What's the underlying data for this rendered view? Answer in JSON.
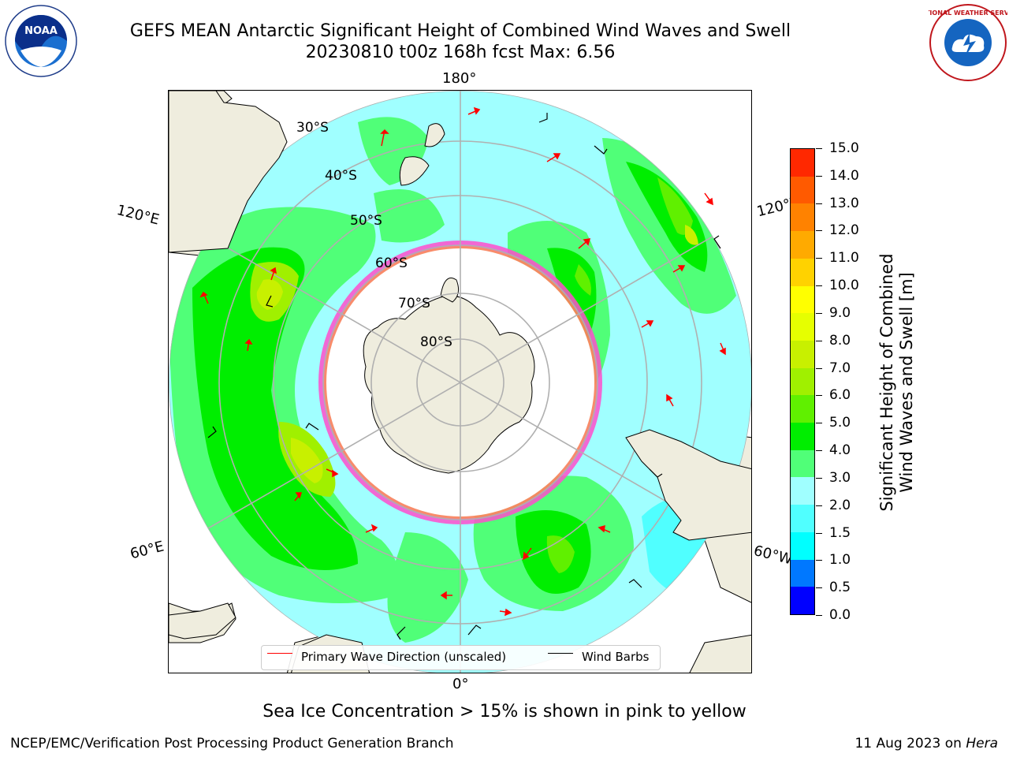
{
  "title": {
    "line1": "GEFS MEAN Antarctic Significant Height of Combined Wind Waves and Swell",
    "line2": "20230810 t00z 168h fcst   Max: 6.56"
  },
  "logos": {
    "left": {
      "icon": "noaa-logo",
      "text": "NOAA"
    },
    "right": {
      "icon": "nws-logo",
      "text": "NATIONAL WEATHER SERVICE"
    }
  },
  "map": {
    "projection": "south-polar-stereographic",
    "longitude_labels": {
      "top": "180°",
      "bottom": "0°",
      "upper_left": "120°E",
      "lower_left": "60°E",
      "upper_right": "120°W",
      "lower_right": "60°W"
    },
    "latitude_labels": [
      "30°S",
      "40°S",
      "50°S",
      "60°S",
      "70°S",
      "80°S"
    ],
    "colors": {
      "land": "#efedde",
      "ocean_low": "#a0ffff",
      "ocean_mid": "#50ff78",
      "ocean_high": "#00ee00",
      "peak": "#c8f000",
      "ice_edge": "#ff4dcc",
      "grid": "#b0b0b0",
      "wave_arrow": "#ff0000",
      "wind_barb": "#000000"
    }
  },
  "legend": {
    "primary_wave": "Primary Wave Direction (unscaled)",
    "wind_barbs": "Wind Barbs",
    "primary_wave_color": "#ff0000",
    "wind_barbs_color": "#000000"
  },
  "colorbar": {
    "label_line1": "Significant Height of Combined",
    "label_line2": "Wind Waves and Swell [m]",
    "ticks": [
      "0.0",
      "0.5",
      "1.0",
      "1.5",
      "2.0",
      "3.0",
      "4.0",
      "5.0",
      "6.0",
      "7.0",
      "8.0",
      "9.0",
      "10.0",
      "11.0",
      "12.0",
      "13.0",
      "14.0",
      "15.0"
    ],
    "colors": [
      "#0000ff",
      "#0078ff",
      "#00ffff",
      "#50ffff",
      "#a0ffff",
      "#50ff78",
      "#00ee00",
      "#60f000",
      "#a0f000",
      "#c8f000",
      "#e6ff00",
      "#ffff00",
      "#ffd200",
      "#ffaa00",
      "#ff8200",
      "#ff5a00",
      "#ff2800"
    ]
  },
  "ice_note": "Sea Ice Concentration > 15% is shown in pink to yellow",
  "footer": {
    "left": "NCEP/EMC/Verification Post Processing Product Generation Branch",
    "date": "11 Aug 2023 on ",
    "machine": "Hera"
  }
}
